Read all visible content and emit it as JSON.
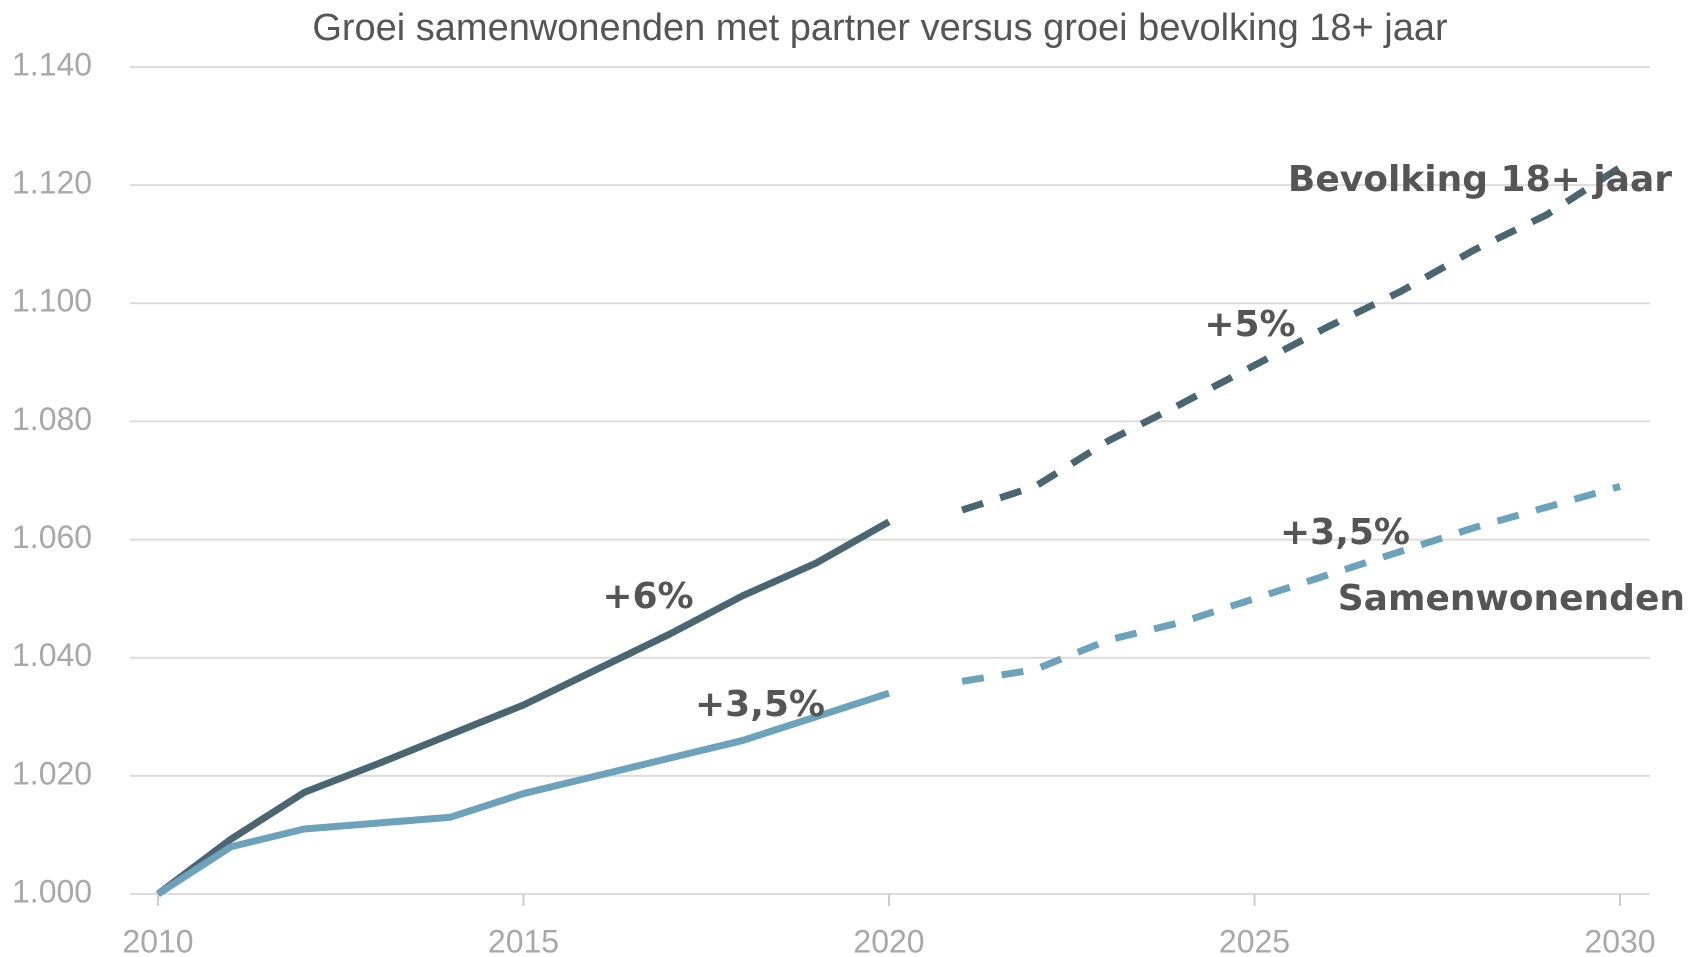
{
  "chart_data": {
    "type": "line",
    "title": "Groei samenwonenden met partner versus groei bevolking 18+ jaar",
    "x": [
      2010,
      2011,
      2012,
      2013,
      2014,
      2015,
      2016,
      2017,
      2018,
      2019,
      2020,
      2021,
      2022,
      2023,
      2024,
      2025,
      2026,
      2027,
      2028,
      2029,
      2030
    ],
    "series": [
      {
        "name": "Bevolking 18+ jaar",
        "color": "#4a6671",
        "values": [
          1000,
          1009.3,
          1017.2,
          1022,
          1027,
          1032,
          1038,
          1044,
          1050.5,
          1056,
          1063,
          null,
          null,
          null,
          null,
          null,
          null,
          null,
          null,
          null,
          null
        ],
        "projection": [
          null,
          null,
          null,
          null,
          null,
          null,
          null,
          null,
          null,
          null,
          null,
          1065,
          1069,
          1076.7,
          1083,
          1089.5,
          1096,
          1102,
          1109,
          1115,
          1123
        ]
      },
      {
        "name": "Samenwonenden",
        "color": "#6ca3bb",
        "values": [
          1000,
          1008,
          1011,
          1012,
          1013,
          1017,
          1020,
          1023,
          1026,
          1030,
          1034,
          null,
          null,
          null,
          null,
          null,
          null,
          null,
          null,
          null,
          null
        ],
        "projection": [
          null,
          null,
          null,
          null,
          null,
          null,
          null,
          null,
          null,
          null,
          null,
          1036,
          1038,
          1043,
          1046,
          1050,
          1054,
          1058,
          1062,
          1065.5,
          1069
        ]
      }
    ],
    "annotations": [
      "+6%",
      "+3,5%",
      "+5%",
      "+3,5%"
    ],
    "xlim": [
      2010,
      2030
    ],
    "xticks": [
      2010,
      2015,
      2020,
      2025,
      2030
    ],
    "ylim": [
      1000,
      1140
    ],
    "yticks": [
      {
        "value": 1000,
        "label": "1.000"
      },
      {
        "value": 1020,
        "label": "1.020"
      },
      {
        "value": 1040,
        "label": "1.040"
      },
      {
        "value": 1060,
        "label": "1.060"
      },
      {
        "value": 1080,
        "label": "1.080"
      },
      {
        "value": 1100,
        "label": "1.100"
      },
      {
        "value": 1120,
        "label": "1.120"
      },
      {
        "value": 1140,
        "label": "1.140"
      }
    ],
    "grid": true
  }
}
